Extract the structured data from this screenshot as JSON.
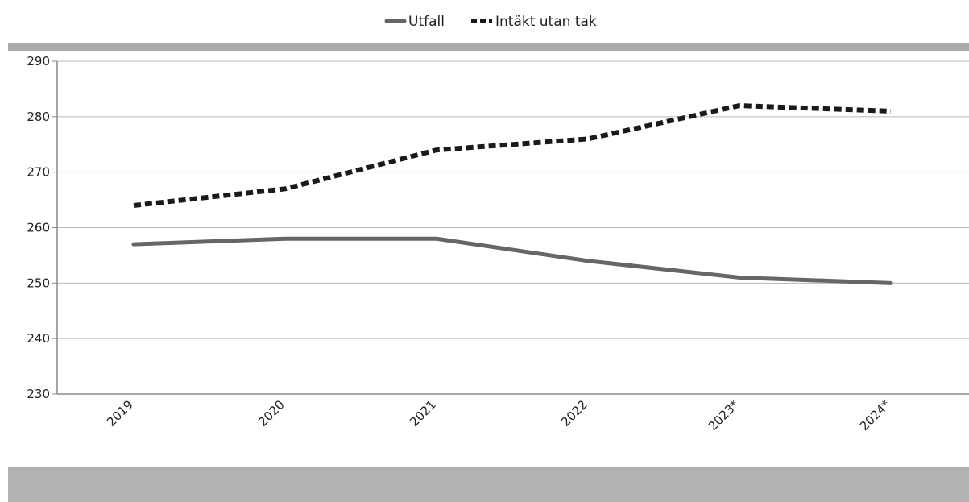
{
  "chart_data": {
    "type": "line",
    "categories": [
      "2019",
      "2020",
      "2021",
      "2022",
      "2023*",
      "2024*"
    ],
    "series": [
      {
        "name": "Utfall",
        "values": [
          257,
          258,
          258,
          254,
          251,
          250
        ],
        "color": "#666666",
        "style": "solid"
      },
      {
        "name": "Intäkt utan tak",
        "values": [
          264,
          267,
          274,
          276,
          282,
          281
        ],
        "color": "#1a1a1a",
        "style": "dashed"
      }
    ],
    "yticks": [
      "230",
      "240",
      "250",
      "260",
      "270",
      "280",
      "290"
    ],
    "ylim": [
      230,
      290
    ],
    "grid": true,
    "legend_position": "top-center"
  }
}
